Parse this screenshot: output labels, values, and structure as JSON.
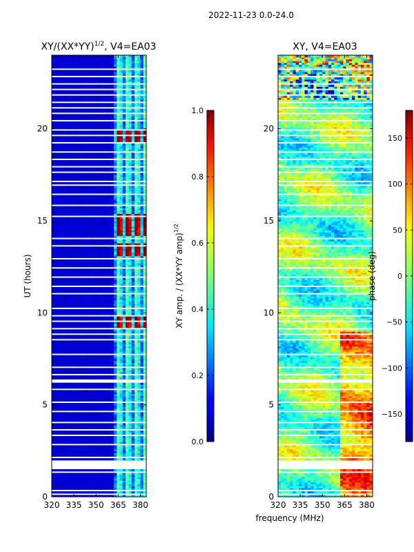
{
  "figure": {
    "suptitle": "2022-11-23 0.0-24.0",
    "shared_xlabel": "frequency (MHz)"
  },
  "chart_data": [
    {
      "type": "heatmap",
      "title_main": "XY/(XX*YY)",
      "title_exp": "1/2",
      "title_suffix": ", V4=EA03",
      "xlabel": "",
      "ylabel": "UT (hours)",
      "xlim": [
        320,
        384
      ],
      "ylim": [
        0,
        24
      ],
      "xticks": [
        320,
        335,
        350,
        365,
        380
      ],
      "yticks": [
        0,
        5,
        10,
        15,
        20
      ],
      "colormap": "jet",
      "colorbar": {
        "label_main": "XY amp. / (XX*YY amp)",
        "label_exp": "1/2",
        "range": [
          0.0,
          1.0
        ],
        "ticks": [
          "0.0",
          "0.2",
          "0.4",
          "0.6",
          "0.8",
          "1.0"
        ],
        "tick_values": [
          0.0,
          0.2,
          0.4,
          0.6,
          0.8,
          1.0
        ]
      },
      "description_values": {
        "background_level": 0.06,
        "band_start_mhz": 361,
        "peak_rows_ut": [
          14.5,
          15.0,
          13.4,
          19.6,
          9.4
        ]
      }
    },
    {
      "type": "heatmap",
      "title": "XY, V4=EA03",
      "xlabel": "frequency (MHz)",
      "ylabel": "",
      "xlim": [
        320,
        384
      ],
      "ylim": [
        0,
        24
      ],
      "xticks": [
        320,
        335,
        350,
        365,
        380
      ],
      "yticks": [
        0,
        5,
        10,
        15,
        20
      ],
      "colormap": "jet",
      "colorbar": {
        "label": "phase (deg)",
        "range": [
          -180,
          180
        ],
        "ticks": [
          "150",
          "100",
          "50",
          "0",
          "−50",
          "−100",
          "−150"
        ],
        "tick_values": [
          150,
          100,
          50,
          0,
          -50,
          -100,
          -150
        ]
      }
    }
  ],
  "flagged_gaps_ut": [
    [
      0.1,
      0.22
    ],
    [
      0.3,
      0.4
    ],
    [
      1.3,
      1.38
    ],
    [
      1.5,
      1.58
    ],
    [
      1.65,
      2.0
    ],
    [
      2.1,
      2.16
    ],
    [
      2.8,
      2.88
    ],
    [
      3.3,
      3.36
    ],
    [
      3.6,
      3.66
    ],
    [
      4.0,
      4.06
    ],
    [
      4.3,
      4.35
    ],
    [
      4.6,
      4.66
    ],
    [
      5.1,
      5.16
    ],
    [
      5.5,
      5.55
    ],
    [
      5.8,
      5.86
    ],
    [
      6.2,
      6.4
    ],
    [
      6.6,
      6.68
    ],
    [
      7.0,
      7.06
    ],
    [
      7.3,
      7.35
    ],
    [
      7.7,
      7.76
    ],
    [
      8.0,
      8.05
    ],
    [
      8.5,
      8.56
    ],
    [
      8.8,
      8.86
    ],
    [
      9.1,
      9.16
    ],
    [
      9.5,
      9.6
    ],
    [
      9.8,
      9.86
    ],
    [
      10.2,
      10.26
    ],
    [
      10.6,
      10.65
    ],
    [
      11.0,
      11.06
    ],
    [
      11.4,
      11.46
    ],
    [
      11.9,
      11.96
    ],
    [
      12.4,
      12.46
    ],
    [
      12.9,
      12.96
    ],
    [
      13.6,
      13.66
    ],
    [
      14.0,
      14.06
    ],
    [
      14.6,
      14.65
    ],
    [
      15.2,
      15.26
    ],
    [
      15.8,
      15.86
    ],
    [
      16.4,
      16.46
    ],
    [
      16.9,
      17.0
    ],
    [
      17.1,
      17.2
    ],
    [
      17.6,
      17.66
    ],
    [
      17.9,
      17.96
    ],
    [
      18.3,
      18.36
    ],
    [
      18.7,
      18.76
    ],
    [
      19.2,
      19.26
    ],
    [
      19.6,
      19.66
    ],
    [
      19.9,
      20.0
    ],
    [
      20.4,
      20.46
    ],
    [
      20.8,
      20.86
    ],
    [
      21.1,
      21.16
    ],
    [
      21.4,
      21.46
    ],
    [
      21.8,
      21.86
    ],
    [
      22.1,
      22.16
    ],
    [
      22.4,
      22.5
    ],
    [
      22.8,
      22.86
    ],
    [
      23.2,
      23.26
    ]
  ]
}
